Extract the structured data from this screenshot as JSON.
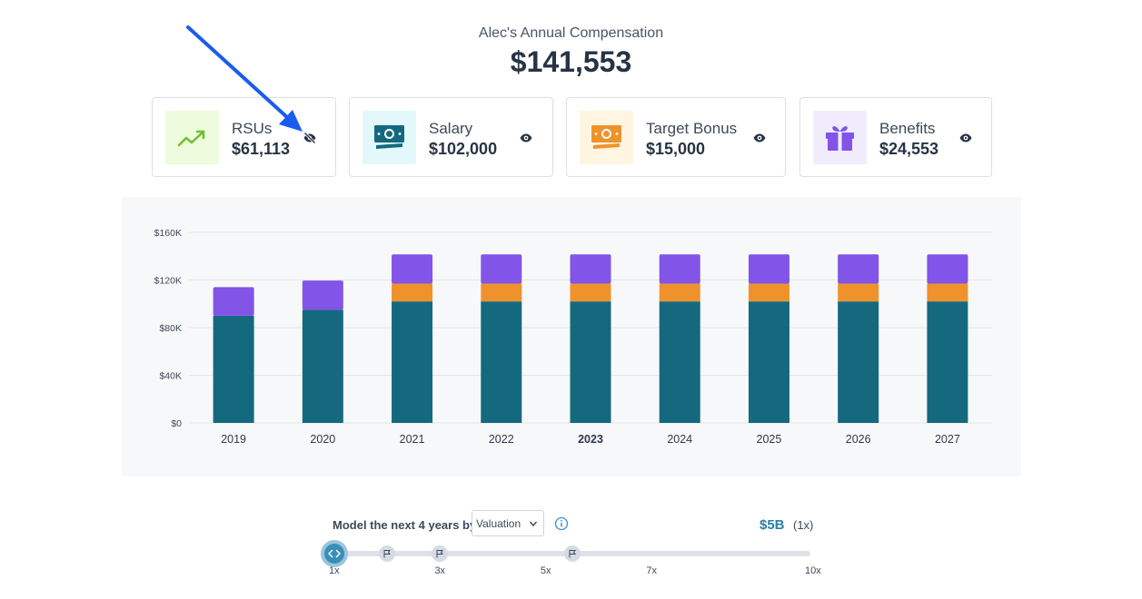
{
  "header": {
    "subtitle": "Alec's Annual Compensation",
    "total": "$141,553"
  },
  "cards": [
    {
      "label": "RSUs",
      "amount": "$61,113",
      "icon": "trending-up-icon",
      "visibility": "hidden"
    },
    {
      "label": "Salary",
      "amount": "$102,000",
      "icon": "cash-icon",
      "visibility": "visible"
    },
    {
      "label": "Target Bonus",
      "amount": "$15,000",
      "icon": "cash-icon",
      "visibility": "visible"
    },
    {
      "label": "Benefits",
      "amount": "$24,553",
      "icon": "gift-icon",
      "visibility": "visible"
    }
  ],
  "colors": {
    "salary": "#14697f",
    "bonus": "#f0922b",
    "benefits": "#8254e8",
    "rsu_tile": "#eefbdc",
    "salary_tile": "#e3f8fb",
    "bonus_tile": "#fff5e0",
    "benefits_tile": "#f1ecfd",
    "annotation_arrow": "#1a5cf0"
  },
  "chart_data": {
    "type": "bar",
    "stacked": true,
    "categories": [
      "2019",
      "2020",
      "2021",
      "2022",
      "2023",
      "2024",
      "2025",
      "2026",
      "2027"
    ],
    "highlight_category": "2023",
    "series": [
      {
        "name": "Salary",
        "values": [
          90000,
          95000,
          102000,
          102000,
          102000,
          102000,
          102000,
          102000,
          102000
        ]
      },
      {
        "name": "Target Bonus",
        "values": [
          0,
          0,
          15000,
          15000,
          15000,
          15000,
          15000,
          15000,
          15000
        ]
      },
      {
        "name": "Benefits",
        "values": [
          24000,
          24500,
          24553,
          24553,
          24553,
          24553,
          24553,
          24553,
          24553
        ]
      }
    ],
    "ylim": [
      0,
      160000
    ],
    "yticks": [
      0,
      40000,
      80000,
      120000,
      160000
    ],
    "ytick_labels": [
      "$0",
      "$40K",
      "$80K",
      "$120K",
      "$160K"
    ],
    "grid": true
  },
  "controls": {
    "model_label": "Model the next 4 years by",
    "select_value": "Valuation",
    "valuation": "$5B",
    "multiplier": "(1x)",
    "slider_value": 1,
    "slider_min": 1,
    "slider_max": 10,
    "flags": [
      2,
      3,
      5.5
    ],
    "ticks": [
      "1x",
      "3x",
      "5x",
      "7x",
      "10x"
    ]
  }
}
